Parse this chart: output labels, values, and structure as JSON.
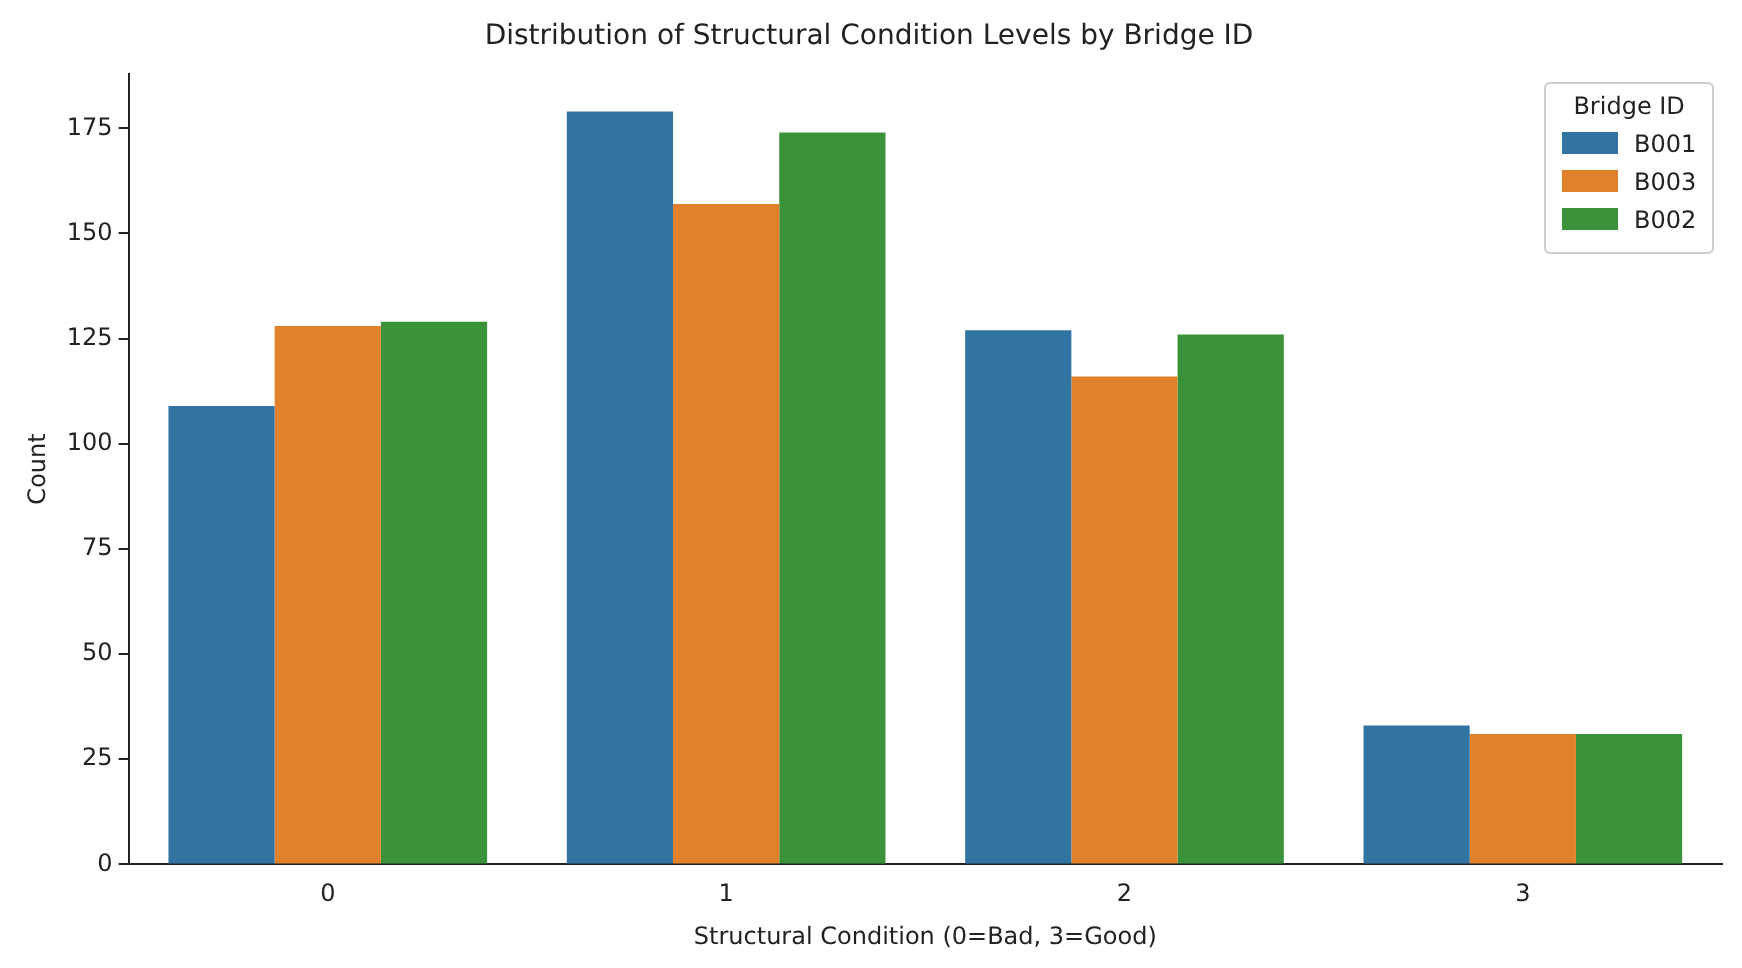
{
  "chart_data": {
    "type": "bar",
    "title": "Distribution of Structural Condition Levels by Bridge ID",
    "xlabel": "Structural Condition (0=Bad, 3=Good)",
    "ylabel": "Count",
    "legend_title": "Bridge ID",
    "categories": [
      "0",
      "1",
      "2",
      "3"
    ],
    "series": [
      {
        "name": "B001",
        "color": "#3274a1",
        "values": [
          109,
          179,
          127,
          33
        ]
      },
      {
        "name": "B003",
        "color": "#e1812c",
        "values": [
          128,
          157,
          116,
          31
        ]
      },
      {
        "name": "B002",
        "color": "#3a923a",
        "values": [
          129,
          174,
          126,
          31
        ]
      }
    ],
    "ylim": [
      0,
      188
    ],
    "yticks": [
      0,
      25,
      50,
      75,
      100,
      125,
      150,
      175
    ],
    "grid": false,
    "legend": "top right"
  }
}
